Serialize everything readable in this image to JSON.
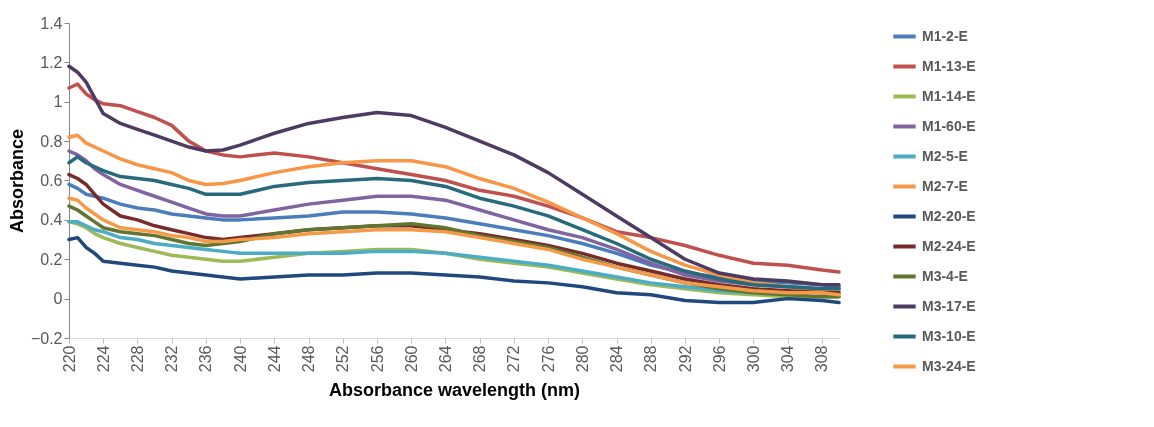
{
  "chart_data": {
    "type": "line",
    "xlabel": "Absorbance  wavelength (nm)",
    "ylabel": "Absorbance",
    "legend": "right",
    "xlim": [
      220,
      310
    ],
    "xticks": [
      220,
      224,
      228,
      232,
      236,
      240,
      244,
      248,
      252,
      256,
      260,
      264,
      268,
      272,
      276,
      280,
      284,
      288,
      292,
      296,
      300,
      304,
      308
    ],
    "ylim": [
      -0.2,
      1.4
    ],
    "yticks": [
      -0.2,
      0,
      0.2,
      0.4,
      0.6,
      0.8,
      1,
      1.2,
      1.4
    ],
    "x": [
      220,
      221,
      222,
      223,
      224,
      226,
      228,
      230,
      232,
      234,
      236,
      238,
      240,
      244,
      248,
      252,
      256,
      260,
      264,
      268,
      272,
      276,
      280,
      284,
      288,
      292,
      296,
      300,
      304,
      308,
      310
    ],
    "series": [
      {
        "name": "M1-2-E",
        "color": "#4a7ebb",
        "values": [
          0.58,
          0.56,
          0.53,
          0.52,
          0.51,
          0.48,
          0.46,
          0.45,
          0.43,
          0.42,
          0.41,
          0.4,
          0.4,
          0.41,
          0.42,
          0.44,
          0.44,
          0.43,
          0.41,
          0.38,
          0.35,
          0.32,
          0.28,
          0.23,
          0.17,
          0.13,
          0.11,
          0.09,
          0.08,
          0.07,
          0.06
        ]
      },
      {
        "name": "M1-13-E",
        "color": "#c0504d",
        "values": [
          1.07,
          1.09,
          1.04,
          1.01,
          0.99,
          0.98,
          0.95,
          0.92,
          0.88,
          0.8,
          0.75,
          0.73,
          0.72,
          0.74,
          0.72,
          0.69,
          0.66,
          0.63,
          0.6,
          0.55,
          0.52,
          0.47,
          0.41,
          0.34,
          0.31,
          0.27,
          0.22,
          0.18,
          0.17,
          0.145,
          0.135
        ]
      },
      {
        "name": "M1-14-E",
        "color": "#9bbb59",
        "values": [
          0.39,
          0.38,
          0.36,
          0.33,
          0.31,
          0.28,
          0.26,
          0.24,
          0.22,
          0.21,
          0.2,
          0.19,
          0.19,
          0.21,
          0.23,
          0.24,
          0.25,
          0.25,
          0.23,
          0.2,
          0.18,
          0.16,
          0.13,
          0.1,
          0.07,
          0.05,
          0.03,
          0.02,
          0.01,
          0.01,
          0.01
        ]
      },
      {
        "name": "M1-60-E",
        "color": "#8064a2",
        "values": [
          0.75,
          0.73,
          0.7,
          0.66,
          0.63,
          0.58,
          0.55,
          0.52,
          0.49,
          0.46,
          0.43,
          0.42,
          0.42,
          0.45,
          0.48,
          0.5,
          0.52,
          0.52,
          0.5,
          0.45,
          0.4,
          0.35,
          0.31,
          0.25,
          0.18,
          0.12,
          0.09,
          0.07,
          0.06,
          0.05,
          0.05
        ]
      },
      {
        "name": "M2-5-E",
        "color": "#4bacc6",
        "values": [
          0.39,
          0.39,
          0.37,
          0.35,
          0.34,
          0.31,
          0.3,
          0.28,
          0.27,
          0.26,
          0.25,
          0.24,
          0.23,
          0.23,
          0.23,
          0.23,
          0.24,
          0.24,
          0.23,
          0.21,
          0.19,
          0.17,
          0.14,
          0.11,
          0.08,
          0.06,
          0.04,
          0.03,
          0.02,
          null,
          null
        ]
      },
      {
        "name": "M2-7-E",
        "color": "#f79646",
        "values": [
          0.82,
          0.83,
          0.79,
          0.77,
          0.75,
          0.71,
          0.68,
          0.66,
          0.64,
          0.6,
          0.58,
          0.585,
          0.6,
          0.64,
          0.67,
          0.69,
          0.7,
          0.7,
          0.67,
          0.61,
          0.56,
          0.49,
          0.41,
          0.33,
          0.24,
          0.17,
          0.12,
          0.08,
          0.06,
          0.04,
          0.04
        ]
      },
      {
        "name": "M2-20-E",
        "color": "#1f497d",
        "values": [
          0.3,
          0.31,
          0.26,
          0.23,
          0.19,
          0.18,
          0.17,
          0.16,
          0.14,
          0.13,
          0.12,
          0.11,
          0.1,
          0.11,
          0.12,
          0.12,
          0.13,
          0.13,
          0.12,
          0.11,
          0.09,
          0.08,
          0.06,
          0.03,
          0.02,
          -0.01,
          -0.02,
          -0.02,
          0,
          -0.01,
          -0.02
        ]
      },
      {
        "name": "M2-24-E",
        "color": "#772c2a",
        "values": [
          0.63,
          0.61,
          0.58,
          0.53,
          0.48,
          0.42,
          0.4,
          0.37,
          0.35,
          0.33,
          0.31,
          0.3,
          0.31,
          0.33,
          0.35,
          0.36,
          0.37,
          0.37,
          0.35,
          0.33,
          0.3,
          0.27,
          0.23,
          0.18,
          0.14,
          0.1,
          0.07,
          0.05,
          0.04,
          0.03,
          0.03
        ]
      },
      {
        "name": "M3-4-E",
        "color": "#5f7530",
        "values": [
          0.47,
          0.45,
          0.42,
          0.39,
          0.36,
          0.34,
          0.33,
          0.32,
          0.3,
          0.28,
          0.27,
          0.28,
          0.29,
          0.33,
          0.35,
          0.36,
          0.37,
          0.38,
          0.36,
          0.32,
          0.29,
          0.26,
          0.21,
          0.16,
          0.12,
          0.08,
          0.05,
          0.03,
          0.02,
          0.01,
          0.01
        ]
      },
      {
        "name": "M3-17-E",
        "color": "#4d3b62",
        "values": [
          1.18,
          1.15,
          1.1,
          1.02,
          0.94,
          0.89,
          0.86,
          0.83,
          0.8,
          0.77,
          0.75,
          0.755,
          0.78,
          0.84,
          0.89,
          0.92,
          0.945,
          0.93,
          0.87,
          0.8,
          0.73,
          0.64,
          0.53,
          0.42,
          0.31,
          0.2,
          0.13,
          0.1,
          0.09,
          0.07,
          0.07
        ]
      },
      {
        "name": "M3-10-E",
        "color": "#276a7c",
        "values": [
          0.69,
          0.72,
          0.69,
          0.67,
          0.65,
          0.62,
          0.61,
          0.6,
          0.58,
          0.56,
          0.53,
          0.53,
          0.53,
          0.57,
          0.59,
          0.6,
          0.61,
          0.6,
          0.57,
          0.51,
          0.47,
          0.42,
          0.35,
          0.28,
          0.2,
          0.14,
          0.1,
          0.07,
          0.06,
          0.05,
          0.05
        ]
      },
      {
        "name": "M3-24-E",
        "color": "#f59a48",
        "values": [
          0.51,
          0.5,
          0.46,
          0.43,
          0.4,
          0.36,
          0.35,
          0.34,
          0.32,
          0.31,
          0.29,
          0.29,
          0.3,
          0.31,
          0.33,
          0.34,
          0.35,
          0.35,
          0.34,
          0.31,
          0.28,
          0.25,
          0.2,
          0.16,
          0.12,
          0.08,
          0.06,
          0.04,
          0.03,
          0.03,
          0.02
        ]
      }
    ]
  }
}
